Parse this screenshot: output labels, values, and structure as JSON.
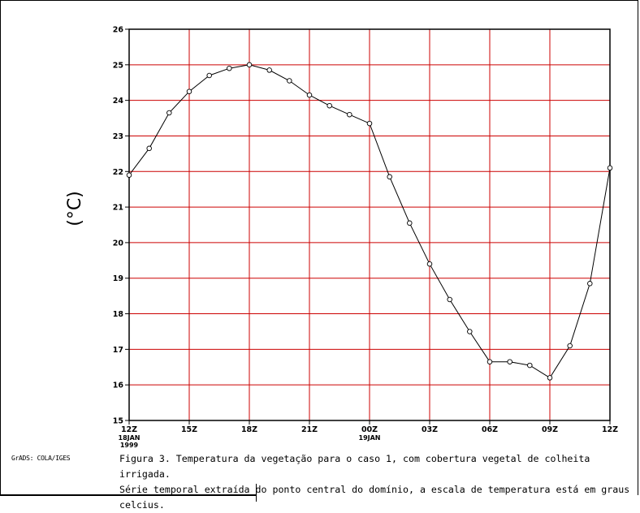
{
  "chart_data": {
    "type": "line",
    "ylabel": "(°C)",
    "ylim": [
      15,
      26
    ],
    "yticks": [
      "15",
      "16",
      "17",
      "18",
      "19",
      "20",
      "21",
      "22",
      "23",
      "24",
      "25",
      "26"
    ],
    "xticks": [
      "12Z",
      "15Z",
      "18Z",
      "21Z",
      "00Z",
      "03Z",
      "06Z",
      "09Z",
      "12Z"
    ],
    "xtick_sublabels": [
      {
        "index": 0,
        "lines": [
          "18JAN",
          "1999"
        ]
      },
      {
        "index": 4,
        "lines": [
          "19JAN"
        ]
      }
    ],
    "grid": true,
    "grid_color": "#cc0000",
    "line_color": "#000000",
    "marker": "open-circle",
    "x": [
      0,
      1,
      2,
      3,
      4,
      5,
      6,
      7,
      8,
      9,
      10,
      11,
      12,
      13,
      14,
      15,
      16,
      17,
      18,
      19,
      20,
      21,
      22,
      23,
      24
    ],
    "series": [
      {
        "values": [
          21.9,
          22.65,
          23.65,
          24.25,
          24.7,
          24.9,
          25.0,
          24.85,
          24.55,
          24.15,
          23.85,
          23.6,
          23.35,
          21.85,
          20.55,
          19.4,
          18.4,
          17.5,
          16.65,
          16.65,
          16.55,
          16.2,
          17.1,
          18.85,
          22.1
        ]
      }
    ]
  },
  "footer": {
    "grads_label": "GrADS: COLA/IGES",
    "caption": "Figura 3. Temperatura da vegetação para o caso 1, com cobertura vegetal de colheita irrigada.\nSérie temporal extraída do ponto central do domínio, a escala de temperatura está em graus\ncelcius."
  }
}
